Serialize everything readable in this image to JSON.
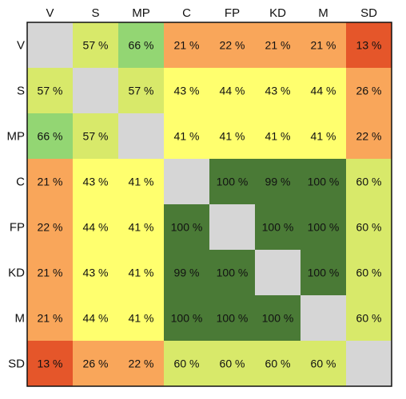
{
  "chart_data": {
    "type": "heatmap",
    "title": "",
    "xlabel": "",
    "ylabel": "",
    "categories": [
      "V",
      "S",
      "MP",
      "C",
      "FP",
      "KD",
      "M",
      "SD"
    ],
    "value_format": "{v} %",
    "matrix": [
      [
        null,
        57,
        66,
        21,
        22,
        21,
        21,
        13
      ],
      [
        57,
        null,
        57,
        43,
        44,
        43,
        44,
        26
      ],
      [
        66,
        57,
        null,
        41,
        41,
        41,
        41,
        22
      ],
      [
        21,
        43,
        41,
        null,
        100,
        99,
        100,
        60
      ],
      [
        22,
        44,
        41,
        100,
        null,
        100,
        100,
        60
      ],
      [
        21,
        43,
        41,
        99,
        100,
        null,
        100,
        60
      ],
      [
        21,
        44,
        41,
        100,
        100,
        100,
        null,
        60
      ],
      [
        13,
        26,
        22,
        60,
        60,
        60,
        60,
        null
      ]
    ],
    "diagonal_color": "#d6d6d6",
    "color_scale": [
      {
        "min": 0,
        "max": 19,
        "color": "#e5562a"
      },
      {
        "min": 20,
        "max": 39,
        "color": "#f9a65a"
      },
      {
        "min": 40,
        "max": 54,
        "color": "#ffff6e"
      },
      {
        "min": 55,
        "max": 64,
        "color": "#d8e96a"
      },
      {
        "min": 65,
        "max": 89,
        "color": "#93d673"
      },
      {
        "min": 90,
        "max": 100,
        "color": "#4a7a36"
      }
    ],
    "grid": false,
    "legend": "none"
  }
}
